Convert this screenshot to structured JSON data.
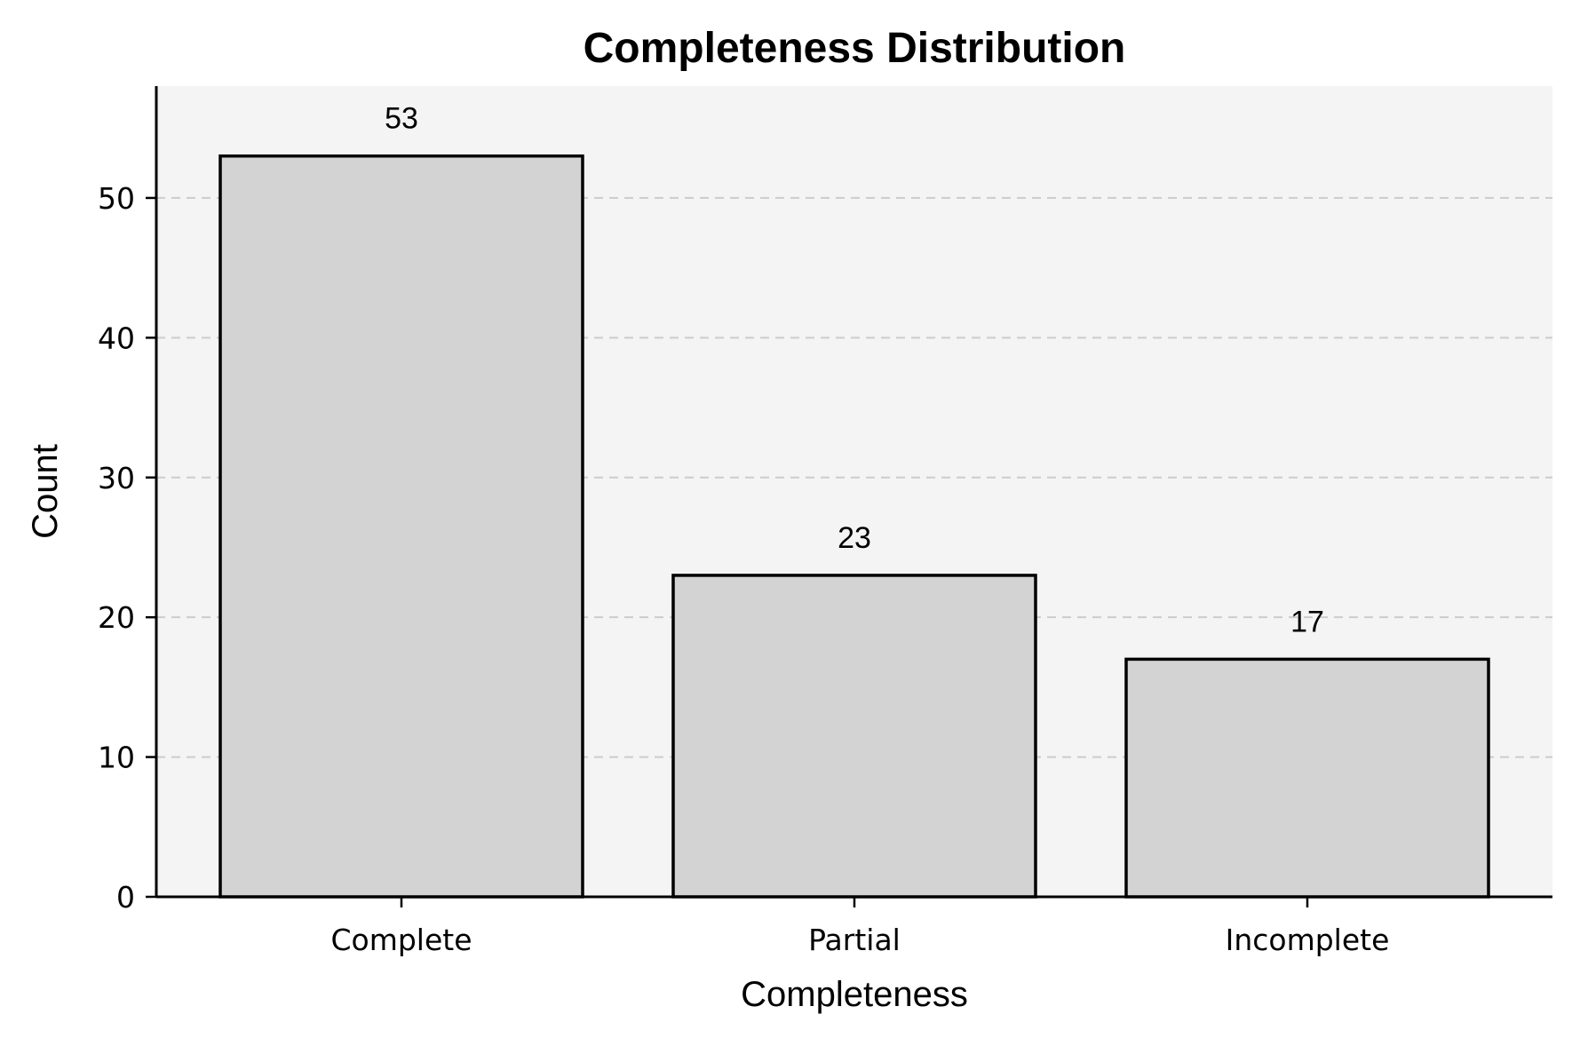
{
  "chart_data": {
    "type": "bar",
    "title": "Completeness Distribution",
    "xlabel": "Completeness",
    "ylabel": "Count",
    "categories": [
      "Complete",
      "Partial",
      "Incomplete"
    ],
    "values": [
      53,
      23,
      17
    ],
    "data_labels": [
      "53",
      "23",
      "17"
    ],
    "ylim": [
      0,
      58
    ],
    "yticks": [
      0,
      10,
      20,
      30,
      40,
      50
    ],
    "ytick_labels": [
      "0",
      "10",
      "20",
      "30",
      "40",
      "50"
    ],
    "grid": "horizontal dashed",
    "legend": "none",
    "colors": {
      "bar_fill": "#d3d3d3",
      "bar_edge": "#000000",
      "plot_background": "#f4f4f4",
      "grid": "#cccccc"
    }
  }
}
